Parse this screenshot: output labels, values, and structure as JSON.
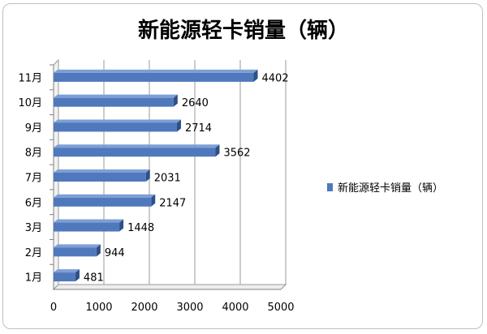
{
  "chart_data": {
    "type": "bar",
    "orientation": "horizontal",
    "style": "3d",
    "title": "新能源轻卡销量（辆）",
    "categories": [
      "11月",
      "10月",
      "9月",
      "8月",
      "7月",
      "6月",
      "3月",
      "2月",
      "1月"
    ],
    "series": [
      {
        "name": "新能源轻卡销量（辆）",
        "values": [
          4402,
          2640,
          2714,
          3562,
          2031,
          2147,
          1448,
          944,
          481
        ]
      }
    ],
    "x_ticks": [
      "0",
      "1000",
      "2000",
      "3000",
      "4000",
      "5000"
    ],
    "xlim": [
      0,
      5000
    ],
    "grid": true,
    "legend_position": "right",
    "colors": {
      "bar": "#4f79bc",
      "bar_top": "#7c9fd6",
      "bar_side": "#2f4f87",
      "grid": "#9a9a9a"
    }
  }
}
